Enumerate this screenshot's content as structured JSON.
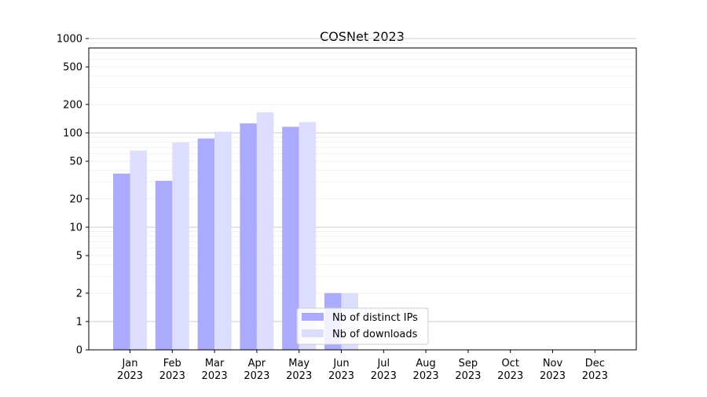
{
  "chart_data": {
    "type": "bar",
    "title": "COSNet 2023",
    "xlabel": "",
    "ylabel": "",
    "yscale": "symlog",
    "ylim": [
      0,
      1200
    ],
    "yticks": [
      {
        "value": 0,
        "label": "0"
      },
      {
        "value": 1,
        "label": "1"
      },
      {
        "value": 2,
        "label": "2"
      },
      {
        "value": 5,
        "label": "5"
      },
      {
        "value": 10,
        "label": "10"
      },
      {
        "value": 20,
        "label": "20"
      },
      {
        "value": 50,
        "label": "50"
      },
      {
        "value": 100,
        "label": "100"
      },
      {
        "value": 200,
        "label": "200"
      },
      {
        "value": 500,
        "label": "500"
      },
      {
        "value": 1000,
        "label": "1000"
      }
    ],
    "categories": [
      {
        "month": "Jan",
        "year": "2023"
      },
      {
        "month": "Feb",
        "year": "2023"
      },
      {
        "month": "Mar",
        "year": "2023"
      },
      {
        "month": "Apr",
        "year": "2023"
      },
      {
        "month": "May",
        "year": "2023"
      },
      {
        "month": "Jun",
        "year": "2023"
      },
      {
        "month": "Jul",
        "year": "2023"
      },
      {
        "month": "Aug",
        "year": "2023"
      },
      {
        "month": "Sep",
        "year": "2023"
      },
      {
        "month": "Oct",
        "year": "2023"
      },
      {
        "month": "Nov",
        "year": "2023"
      },
      {
        "month": "Dec",
        "year": "2023"
      }
    ],
    "series": [
      {
        "name": "Nb of distinct IPs",
        "color": "#aaaaff",
        "values": [
          37,
          31,
          87,
          126,
          116,
          2,
          0,
          0,
          0,
          0,
          0,
          0
        ]
      },
      {
        "name": "Nb of downloads",
        "color": "#ddddff",
        "values": [
          65,
          79,
          103,
          165,
          130,
          2,
          0,
          0,
          0,
          0,
          0,
          0
        ]
      }
    ],
    "grid": true,
    "legend_position": "lower center"
  }
}
